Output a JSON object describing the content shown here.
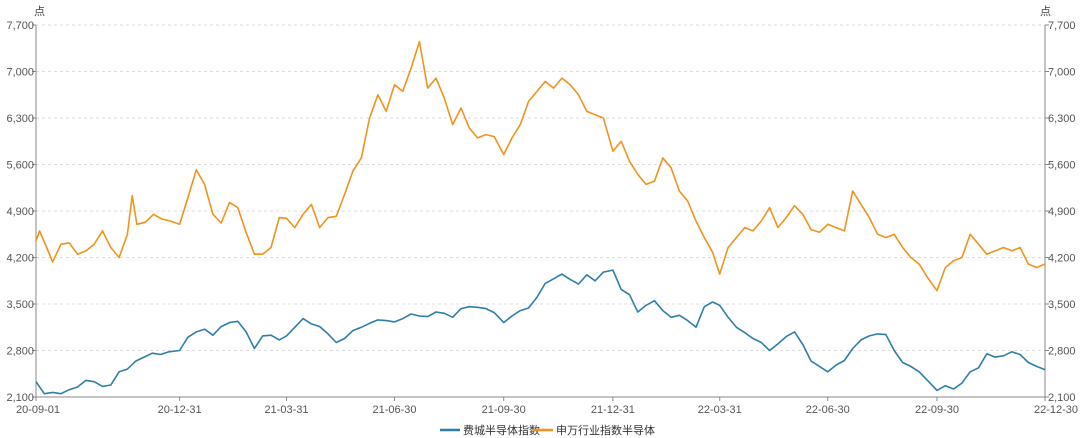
{
  "chart_data": {
    "type": "line",
    "title": "",
    "y_unit_left": "点",
    "y_unit_right": "点",
    "ylim": [
      2100,
      7700
    ],
    "y_ticks": [
      2100,
      2800,
      3500,
      4200,
      4900,
      5600,
      6300,
      7000,
      7700
    ],
    "y_tick_labels": [
      "2,100",
      "2,800",
      "3,500",
      "4,200",
      "4,900",
      "5,600",
      "6,300",
      "7,000",
      "7,700"
    ],
    "x_range": [
      "2020-09-01",
      "2022-12-30"
    ],
    "x_ticks": [
      "2020-09-01",
      "2020-12-31",
      "2021-03-31",
      "2021-06-30",
      "2021-09-30",
      "2021-12-31",
      "2022-03-31",
      "2022-06-30",
      "2022-09-30",
      "2022-12-30"
    ],
    "x_tick_labels": [
      "20-09-01",
      "20-12-31",
      "21-03-31",
      "21-06-30",
      "21-09-30",
      "21-12-31",
      "22-03-31",
      "22-06-30",
      "22-09-30",
      "22-12-30"
    ],
    "grid": "horizontal-dashed",
    "legend_position": "bottom-center",
    "series": [
      {
        "name": "费城半导体指数",
        "color": "#2e7fa8",
        "points": [
          [
            "2020-09-01",
            2330
          ],
          [
            "2020-09-08",
            2150
          ],
          [
            "2020-09-15",
            2170
          ],
          [
            "2020-09-22",
            2150
          ],
          [
            "2020-09-29",
            2210
          ],
          [
            "2020-10-06",
            2250
          ],
          [
            "2020-10-13",
            2350
          ],
          [
            "2020-10-20",
            2330
          ],
          [
            "2020-10-27",
            2260
          ],
          [
            "2020-11-03",
            2280
          ],
          [
            "2020-11-10",
            2480
          ],
          [
            "2020-11-17",
            2520
          ],
          [
            "2020-11-24",
            2640
          ],
          [
            "2020-12-01",
            2700
          ],
          [
            "2020-12-08",
            2760
          ],
          [
            "2020-12-15",
            2740
          ],
          [
            "2020-12-22",
            2780
          ],
          [
            "2020-12-31",
            2800
          ],
          [
            "2021-01-07",
            3000
          ],
          [
            "2021-01-14",
            3080
          ],
          [
            "2021-01-21",
            3120
          ],
          [
            "2021-01-28",
            3030
          ],
          [
            "2021-02-04",
            3160
          ],
          [
            "2021-02-11",
            3220
          ],
          [
            "2021-02-18",
            3240
          ],
          [
            "2021-02-25",
            3080
          ],
          [
            "2021-03-04",
            2830
          ],
          [
            "2021-03-11",
            3020
          ],
          [
            "2021-03-18",
            3030
          ],
          [
            "2021-03-25",
            2960
          ],
          [
            "2021-03-31",
            3020
          ],
          [
            "2021-04-07",
            3150
          ],
          [
            "2021-04-14",
            3280
          ],
          [
            "2021-04-21",
            3200
          ],
          [
            "2021-04-28",
            3160
          ],
          [
            "2021-05-05",
            3050
          ],
          [
            "2021-05-12",
            2920
          ],
          [
            "2021-05-19",
            2980
          ],
          [
            "2021-05-26",
            3100
          ],
          [
            "2021-06-02",
            3150
          ],
          [
            "2021-06-09",
            3210
          ],
          [
            "2021-06-16",
            3260
          ],
          [
            "2021-06-23",
            3250
          ],
          [
            "2021-06-30",
            3230
          ],
          [
            "2021-07-07",
            3280
          ],
          [
            "2021-07-14",
            3350
          ],
          [
            "2021-07-21",
            3320
          ],
          [
            "2021-07-28",
            3310
          ],
          [
            "2021-08-04",
            3380
          ],
          [
            "2021-08-11",
            3360
          ],
          [
            "2021-08-18",
            3300
          ],
          [
            "2021-08-25",
            3430
          ],
          [
            "2021-09-01",
            3460
          ],
          [
            "2021-09-08",
            3450
          ],
          [
            "2021-09-15",
            3430
          ],
          [
            "2021-09-22",
            3370
          ],
          [
            "2021-09-30",
            3220
          ],
          [
            "2021-10-07",
            3320
          ],
          [
            "2021-10-14",
            3400
          ],
          [
            "2021-10-21",
            3440
          ],
          [
            "2021-10-28",
            3600
          ],
          [
            "2021-11-04",
            3810
          ],
          [
            "2021-11-11",
            3880
          ],
          [
            "2021-11-18",
            3950
          ],
          [
            "2021-11-25",
            3870
          ],
          [
            "2021-12-02",
            3800
          ],
          [
            "2021-12-09",
            3940
          ],
          [
            "2021-12-16",
            3850
          ],
          [
            "2021-12-23",
            3980
          ],
          [
            "2021-12-31",
            4010
          ],
          [
            "2022-01-07",
            3720
          ],
          [
            "2022-01-14",
            3640
          ],
          [
            "2022-01-21",
            3380
          ],
          [
            "2022-01-28",
            3480
          ],
          [
            "2022-02-04",
            3550
          ],
          [
            "2022-02-11",
            3400
          ],
          [
            "2022-02-18",
            3300
          ],
          [
            "2022-02-25",
            3330
          ],
          [
            "2022-03-04",
            3250
          ],
          [
            "2022-03-11",
            3150
          ],
          [
            "2022-03-18",
            3460
          ],
          [
            "2022-03-25",
            3530
          ],
          [
            "2022-03-31",
            3480
          ],
          [
            "2022-04-07",
            3300
          ],
          [
            "2022-04-14",
            3150
          ],
          [
            "2022-04-21",
            3070
          ],
          [
            "2022-04-28",
            2980
          ],
          [
            "2022-05-05",
            2920
          ],
          [
            "2022-05-12",
            2800
          ],
          [
            "2022-05-19",
            2900
          ],
          [
            "2022-05-26",
            3010
          ],
          [
            "2022-06-02",
            3080
          ],
          [
            "2022-06-09",
            2890
          ],
          [
            "2022-06-16",
            2640
          ],
          [
            "2022-06-23",
            2560
          ],
          [
            "2022-06-30",
            2480
          ],
          [
            "2022-07-07",
            2580
          ],
          [
            "2022-07-14",
            2650
          ],
          [
            "2022-07-21",
            2830
          ],
          [
            "2022-07-28",
            2960
          ],
          [
            "2022-08-04",
            3020
          ],
          [
            "2022-08-11",
            3050
          ],
          [
            "2022-08-18",
            3040
          ],
          [
            "2022-08-25",
            2800
          ],
          [
            "2022-09-01",
            2620
          ],
          [
            "2022-09-08",
            2560
          ],
          [
            "2022-09-15",
            2480
          ],
          [
            "2022-09-22",
            2350
          ],
          [
            "2022-09-30",
            2200
          ],
          [
            "2022-10-07",
            2270
          ],
          [
            "2022-10-14",
            2220
          ],
          [
            "2022-10-21",
            2310
          ],
          [
            "2022-10-28",
            2480
          ],
          [
            "2022-11-04",
            2540
          ],
          [
            "2022-11-11",
            2750
          ],
          [
            "2022-11-18",
            2700
          ],
          [
            "2022-11-25",
            2720
          ],
          [
            "2022-12-02",
            2780
          ],
          [
            "2022-12-09",
            2740
          ],
          [
            "2022-12-16",
            2620
          ],
          [
            "2022-12-23",
            2560
          ],
          [
            "2022-12-30",
            2510
          ]
        ]
      },
      {
        "name": "申万行业指数半导体",
        "color": "#f0931e",
        "points": [
          [
            "2020-09-01",
            4450
          ],
          [
            "2020-09-04",
            4600
          ],
          [
            "2020-09-10",
            4350
          ],
          [
            "2020-09-15",
            4130
          ],
          [
            "2020-09-22",
            4400
          ],
          [
            "2020-09-29",
            4420
          ],
          [
            "2020-10-06",
            4250
          ],
          [
            "2020-10-13",
            4300
          ],
          [
            "2020-10-20",
            4400
          ],
          [
            "2020-10-27",
            4600
          ],
          [
            "2020-11-03",
            4350
          ],
          [
            "2020-11-10",
            4200
          ],
          [
            "2020-11-17",
            4550
          ],
          [
            "2020-11-21",
            5130
          ],
          [
            "2020-11-25",
            4700
          ],
          [
            "2020-12-02",
            4730
          ],
          [
            "2020-12-09",
            4850
          ],
          [
            "2020-12-16",
            4780
          ],
          [
            "2020-12-23",
            4750
          ],
          [
            "2020-12-31",
            4700
          ],
          [
            "2021-01-07",
            5100
          ],
          [
            "2021-01-14",
            5520
          ],
          [
            "2021-01-21",
            5300
          ],
          [
            "2021-01-28",
            4850
          ],
          [
            "2021-02-04",
            4720
          ],
          [
            "2021-02-11",
            5030
          ],
          [
            "2021-02-18",
            4950
          ],
          [
            "2021-02-25",
            4580
          ],
          [
            "2021-03-04",
            4250
          ],
          [
            "2021-03-11",
            4250
          ],
          [
            "2021-03-18",
            4350
          ],
          [
            "2021-03-25",
            4800
          ],
          [
            "2021-03-31",
            4790
          ],
          [
            "2021-04-07",
            4650
          ],
          [
            "2021-04-14",
            4850
          ],
          [
            "2021-04-21",
            5000
          ],
          [
            "2021-04-28",
            4650
          ],
          [
            "2021-05-05",
            4800
          ],
          [
            "2021-05-12",
            4820
          ],
          [
            "2021-05-19",
            5150
          ],
          [
            "2021-05-26",
            5500
          ],
          [
            "2021-06-02",
            5700
          ],
          [
            "2021-06-09",
            6300
          ],
          [
            "2021-06-16",
            6650
          ],
          [
            "2021-06-23",
            6400
          ],
          [
            "2021-06-30",
            6800
          ],
          [
            "2021-07-07",
            6700
          ],
          [
            "2021-07-14",
            7050
          ],
          [
            "2021-07-21",
            7450
          ],
          [
            "2021-07-28",
            6750
          ],
          [
            "2021-08-04",
            6900
          ],
          [
            "2021-08-11",
            6600
          ],
          [
            "2021-08-18",
            6200
          ],
          [
            "2021-08-25",
            6450
          ],
          [
            "2021-09-01",
            6150
          ],
          [
            "2021-09-08",
            6000
          ],
          [
            "2021-09-15",
            6050
          ],
          [
            "2021-09-22",
            6020
          ],
          [
            "2021-09-30",
            5750
          ],
          [
            "2021-10-07",
            6000
          ],
          [
            "2021-10-14",
            6200
          ],
          [
            "2021-10-21",
            6550
          ],
          [
            "2021-10-28",
            6700
          ],
          [
            "2021-11-04",
            6850
          ],
          [
            "2021-11-11",
            6750
          ],
          [
            "2021-11-18",
            6900
          ],
          [
            "2021-11-25",
            6800
          ],
          [
            "2021-12-02",
            6650
          ],
          [
            "2021-12-09",
            6400
          ],
          [
            "2021-12-16",
            6350
          ],
          [
            "2021-12-23",
            6300
          ],
          [
            "2021-12-31",
            5800
          ],
          [
            "2022-01-07",
            5950
          ],
          [
            "2022-01-14",
            5650
          ],
          [
            "2022-01-21",
            5450
          ],
          [
            "2022-01-28",
            5300
          ],
          [
            "2022-02-04",
            5350
          ],
          [
            "2022-02-11",
            5700
          ],
          [
            "2022-02-18",
            5550
          ],
          [
            "2022-02-25",
            5200
          ],
          [
            "2022-03-04",
            5050
          ],
          [
            "2022-03-11",
            4750
          ],
          [
            "2022-03-18",
            4500
          ],
          [
            "2022-03-25",
            4280
          ],
          [
            "2022-03-31",
            3950
          ],
          [
            "2022-04-07",
            4350
          ],
          [
            "2022-04-14",
            4500
          ],
          [
            "2022-04-21",
            4650
          ],
          [
            "2022-04-28",
            4600
          ],
          [
            "2022-05-05",
            4750
          ],
          [
            "2022-05-12",
            4950
          ],
          [
            "2022-05-19",
            4650
          ],
          [
            "2022-05-26",
            4800
          ],
          [
            "2022-06-02",
            4980
          ],
          [
            "2022-06-09",
            4850
          ],
          [
            "2022-06-16",
            4620
          ],
          [
            "2022-06-23",
            4580
          ],
          [
            "2022-06-30",
            4700
          ],
          [
            "2022-07-07",
            4650
          ],
          [
            "2022-07-14",
            4600
          ],
          [
            "2022-07-21",
            5200
          ],
          [
            "2022-07-28",
            5000
          ],
          [
            "2022-08-04",
            4800
          ],
          [
            "2022-08-11",
            4550
          ],
          [
            "2022-08-18",
            4500
          ],
          [
            "2022-08-25",
            4550
          ],
          [
            "2022-09-01",
            4350
          ],
          [
            "2022-09-08",
            4200
          ],
          [
            "2022-09-15",
            4100
          ],
          [
            "2022-09-22",
            3900
          ],
          [
            "2022-09-30",
            3700
          ],
          [
            "2022-10-07",
            4050
          ],
          [
            "2022-10-14",
            4150
          ],
          [
            "2022-10-21",
            4200
          ],
          [
            "2022-10-28",
            4550
          ],
          [
            "2022-11-04",
            4400
          ],
          [
            "2022-11-11",
            4250
          ],
          [
            "2022-11-18",
            4300
          ],
          [
            "2022-11-25",
            4350
          ],
          [
            "2022-12-02",
            4300
          ],
          [
            "2022-12-09",
            4350
          ],
          [
            "2022-12-16",
            4100
          ],
          [
            "2022-12-23",
            4050
          ],
          [
            "2022-12-30",
            4100
          ]
        ]
      }
    ]
  }
}
